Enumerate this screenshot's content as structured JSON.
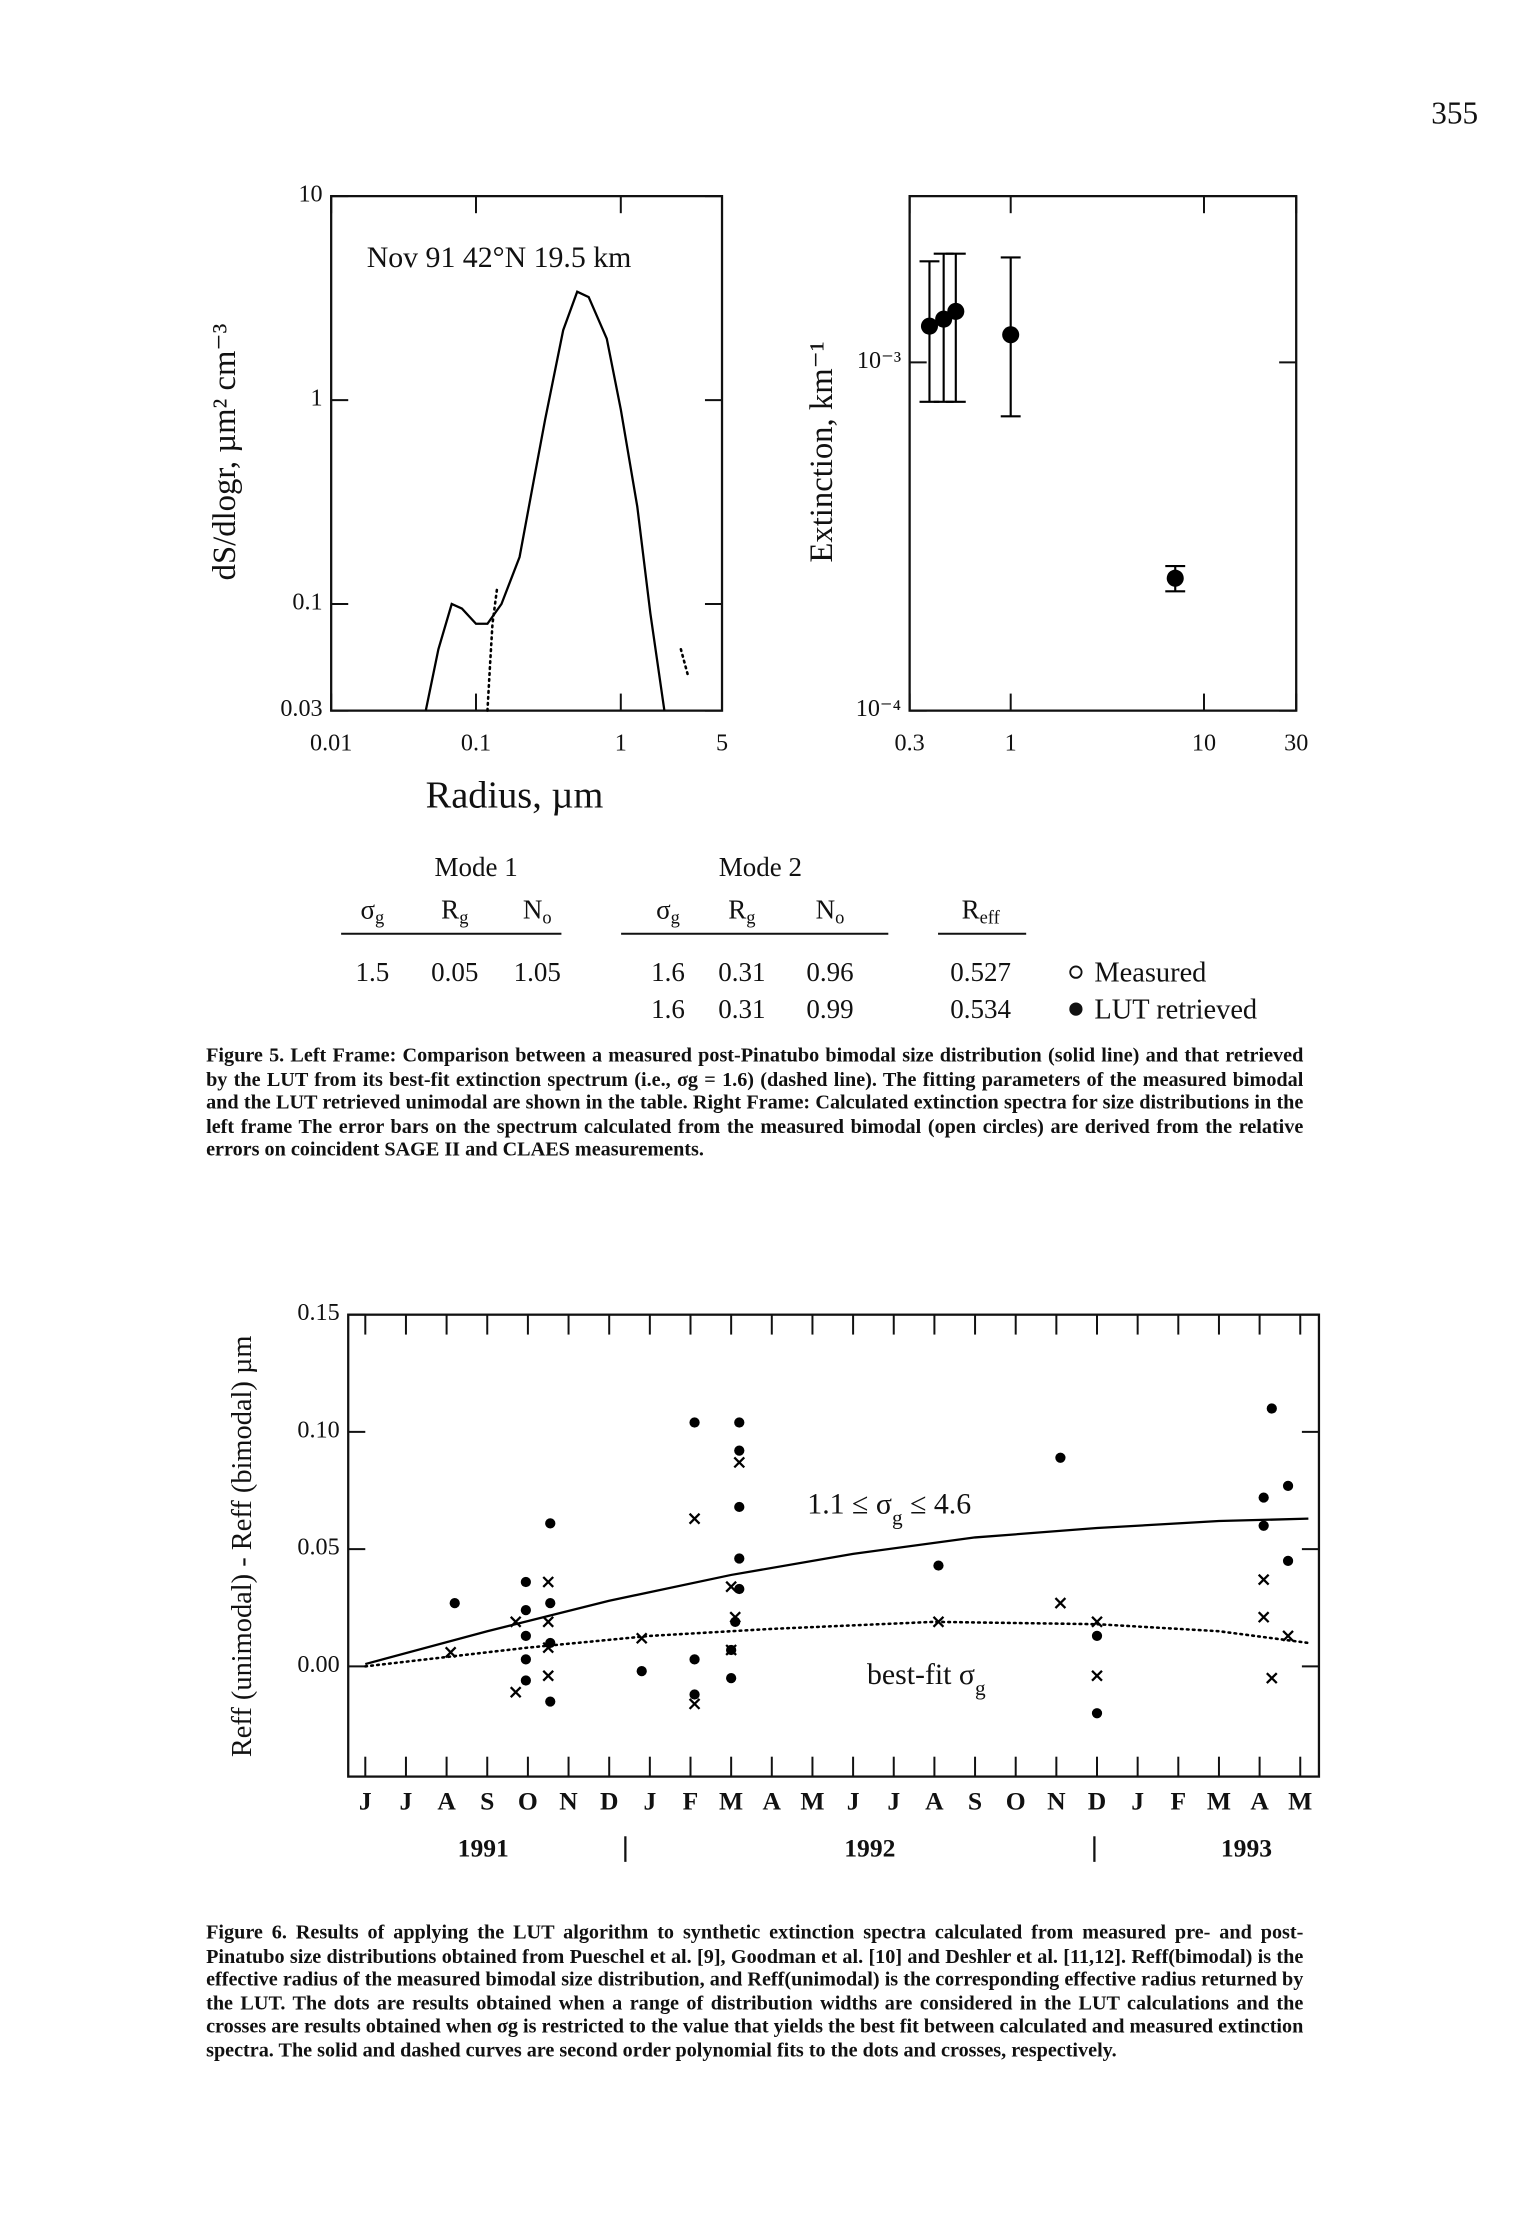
{
  "page_number": "355",
  "chart_data": [
    {
      "type": "line",
      "annotation": "Nov 91   42°N   19.5 km",
      "x_label": "Radius, µm",
      "y_label": "dS/dlogr, µm² cm⁻³",
      "log_x": true,
      "log_y": true,
      "xlim": [
        0.01,
        5
      ],
      "ylim": [
        0.03,
        10
      ],
      "xticks": [
        0.01,
        0.1,
        1,
        5
      ],
      "yticks": [
        0.03,
        0.1,
        1,
        10
      ],
      "series": [
        {
          "style": "solid",
          "color": "#000000",
          "x": [
            0.045,
            0.055,
            0.068,
            0.08,
            0.1,
            0.12,
            0.15,
            0.2,
            0.25,
            0.3,
            0.4,
            0.5,
            0.6,
            0.8,
            1,
            1.3,
            1.6,
            2
          ],
          "values": [
            0.03,
            0.06,
            0.1,
            0.095,
            0.08,
            0.08,
            0.1,
            0.17,
            0.4,
            0.8,
            2.2,
            3.4,
            3.2,
            2.0,
            0.9,
            0.3,
            0.09,
            0.03
          ]
        },
        {
          "style": "dotted",
          "color": "#000000",
          "x": [
            0.12,
            0.125,
            0.13,
            0.14,
            1.5,
            2.6,
            2.9
          ],
          "values": [
            0.03,
            0.05,
            0.08,
            0.12,
            null,
            0.06,
            0.045
          ]
        }
      ]
    },
    {
      "type": "scatter",
      "y_label": "Extinction, km⁻¹",
      "log_x": true,
      "log_y": true,
      "xlim": [
        0.3,
        30
      ],
      "ylim": [
        0.0001,
        0.003
      ],
      "xticks": [
        0.3,
        1,
        10,
        30
      ],
      "yticks": [
        {
          "value": 0.0001,
          "label": "10⁻⁴"
        },
        {
          "value": 0.001,
          "label": "10⁻³"
        }
      ],
      "series": [
        {
          "marker": "dot",
          "color": "#000000",
          "x": [
            0.38,
            0.45,
            0.52,
            1.0,
            7.1
          ],
          "values": [
            0.00127,
            0.00133,
            0.0014,
            0.0012,
            0.00024
          ],
          "err_low": [
            0.00077,
            0.00077,
            0.00077,
            0.0007,
            0.00022
          ],
          "err_high": [
            0.00195,
            0.00205,
            0.00205,
            0.002,
            0.00026
          ]
        }
      ]
    },
    {
      "type": "scatter",
      "y_label": "Reff (unimodal) - Reff (bimodal) µm",
      "categories": [
        "J",
        "J",
        "A",
        "S",
        "O",
        "N",
        "D",
        "J",
        "F",
        "M",
        "A",
        "M",
        "J",
        "J",
        "A",
        "S",
        "O",
        "N",
        "D",
        "J",
        "F",
        "M",
        "A",
        "M"
      ],
      "years": [
        "1991",
        "1992",
        "1993"
      ],
      "xlim": [
        -0.42,
        23.46
      ],
      "ylim": [
        -0.047,
        0.15
      ],
      "yticks": [
        {
          "value": 0,
          "label": "0.00"
        },
        0.05,
        {
          "value": 0.1,
          "label": "0.10"
        },
        0.15
      ],
      "annotations": [
        {
          "parts": [
            "1.1 ≤ σ",
            "g",
            " ≤ 4.6"
          ]
        },
        {
          "parts": [
            "best-fit σ",
            "g"
          ]
        }
      ],
      "series": [
        {
          "marker": "dot",
          "color": "#000000",
          "x": [
            2.2,
            3.95,
            3.95,
            3.95,
            3.95,
            3.95,
            4.55,
            4.55,
            4.55,
            4.55,
            6.8,
            8.1,
            8.1,
            8.1,
            9.2,
            9.2,
            9.2,
            9.2,
            9.2,
            9.1,
            9.0,
            9.0,
            14.1,
            17.1,
            18.0,
            18.0,
            22.3,
            22.1,
            22.7,
            22.1,
            22.7
          ],
          "values": [
            0.027,
            0.036,
            0.024,
            0.013,
            0.003,
            -0.006,
            0.061,
            0.027,
            0.01,
            -0.015,
            -0.002,
            0.003,
            -0.012,
            0.104,
            0.104,
            0.092,
            0.068,
            0.046,
            0.033,
            0.019,
            0.007,
            -0.005,
            0.043,
            0.089,
            0.013,
            -0.02,
            0.11,
            0.072,
            0.077,
            0.06,
            0.045
          ]
        },
        {
          "marker": "cross",
          "color": "#000000",
          "x": [
            2.1,
            3.7,
            3.7,
            4.5,
            4.5,
            4.5,
            4.5,
            6.8,
            8.1,
            8.1,
            9.2,
            9.0,
            9.1,
            9.0,
            14.1,
            17.1,
            18.0,
            18.0,
            22.1,
            22.1,
            22.3,
            22.7
          ],
          "values": [
            0.006,
            -0.011,
            0.019,
            0.036,
            0.019,
            0.008,
            -0.004,
            0.012,
            0.063,
            -0.016,
            0.087,
            0.034,
            0.021,
            0.007,
            0.019,
            0.027,
            0.019,
            -0.004,
            0.037,
            0.021,
            -0.005,
            0.013
          ]
        },
        {
          "style": "solid",
          "color": "#000000",
          "x": [
            0,
            3,
            6,
            9,
            12,
            15,
            18,
            21,
            23.2
          ],
          "values": [
            0.001,
            0.015,
            0.028,
            0.039,
            0.048,
            0.055,
            0.059,
            0.062,
            0.063
          ]
        },
        {
          "style": "dotted",
          "color": "#000000",
          "x": [
            0,
            4,
            7,
            10,
            14,
            18,
            21,
            23.2
          ],
          "values": [
            0,
            0.008,
            0.013,
            0.016,
            0.019,
            0.018,
            0.015,
            0.01
          ]
        }
      ]
    }
  ],
  "table": {
    "mode1": "Mode 1",
    "mode2": "Mode 2",
    "columns": [
      {
        "symbol": "σ",
        "sub": "g"
      },
      {
        "symbol": "R",
        "sub": "g"
      },
      {
        "symbol": "N",
        "sub": "o"
      },
      {
        "symbol": "σ",
        "sub": "g"
      },
      {
        "symbol": "R",
        "sub": "g"
      },
      {
        "symbol": "N",
        "sub": "o"
      },
      {
        "symbol": "R",
        "sub": "eff"
      }
    ],
    "rows": [
      {
        "mode1": [
          "1.5",
          "0.05",
          "1.05"
        ],
        "mode2": [
          "1.6",
          "0.31",
          "0.96"
        ],
        "reff": "0.527",
        "legend": "Measured"
      },
      {
        "mode2": [
          "1.6",
          "0.31",
          "0.99"
        ],
        "reff": "0.534",
        "legend": "LUT retrieved"
      }
    ]
  },
  "figure5_caption": "Figure 5. Left Frame: Comparison between a measured post-Pinatubo bimodal size distribution (solid line) and that retrieved by the LUT from its best-fit extinction spectrum (i.e., σg = 1.6) (dashed line). The fitting parameters of the measured bimodal and the LUT retrieved unimodal are shown in the table. Right Frame: Calculated extinction spectra for size distributions in the left frame The error bars on the spectrum calculated from the measured bimodal (open circles) are derived from the relative errors on coincident SAGE II and CLAES measurements.",
  "figure6_caption": "Figure 6. Results of applying the LUT algorithm to synthetic extinction spectra calculated from measured pre- and post-Pinatubo size distributions obtained from Pueschel et al. [9], Goodman et al. [10] and Deshler et al. [11,12]. Reff(bimodal) is the effective radius of the measured bimodal size distribution, and Reff(unimodal) is the corresponding effective radius returned by the LUT. The dots are results obtained when a range of distribution widths are considered in the LUT calculations and the crosses are results obtained when σg is restricted to the value that yields the best fit between calculated and measured extinction spectra. The solid and dashed curves are second order polynomial fits to the dots and crosses, respectively."
}
